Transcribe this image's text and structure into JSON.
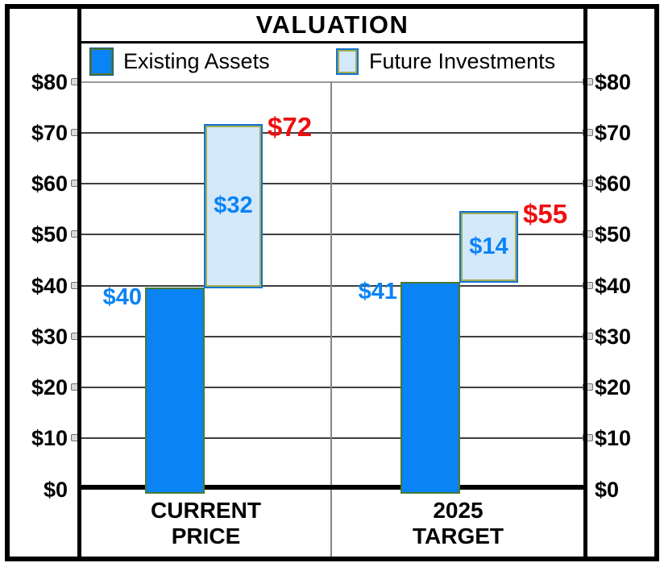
{
  "chart_data": {
    "type": "bar",
    "subtype": "stacked-contribution",
    "title": "VALUATION",
    "legend_position": "top",
    "grid": true,
    "categories": [
      {
        "lines": [
          "CURRENT",
          "PRICE"
        ]
      },
      {
        "lines": [
          "2025",
          "TARGET"
        ]
      }
    ],
    "series": [
      {
        "name": "Existing Assets",
        "values": [
          40,
          41
        ],
        "value_labels": [
          "$40",
          "$41"
        ]
      },
      {
        "name": "Future Investments",
        "values": [
          32,
          14
        ],
        "value_labels": [
          "$32",
          "$14"
        ]
      }
    ],
    "totals": {
      "values": [
        72,
        55
      ],
      "labels": [
        "$72",
        "$55"
      ]
    },
    "y_axis": {
      "min": 0,
      "max": 80,
      "tick_step": 10,
      "tick_labels": [
        "$0",
        "$10",
        "$20",
        "$30",
        "$40",
        "$50",
        "$60",
        "$70",
        "$80"
      ],
      "sides": [
        "left",
        "right"
      ]
    },
    "colors": {
      "existing_fill": "#0a83f5",
      "existing_border": "#4a7a33",
      "future_fill": "#d3e8f9",
      "future_border": "#1173d0",
      "future_inner_border": "#a4ad4f",
      "value_label_blue": "#0a83f5",
      "total_label_red": "#ee0f0f",
      "gridline": "#3f3f3f",
      "top_gridline": "#9a9a9a",
      "axis": "#000000",
      "divider": "#858585",
      "swatch_dark_outer": "#14508c"
    }
  }
}
